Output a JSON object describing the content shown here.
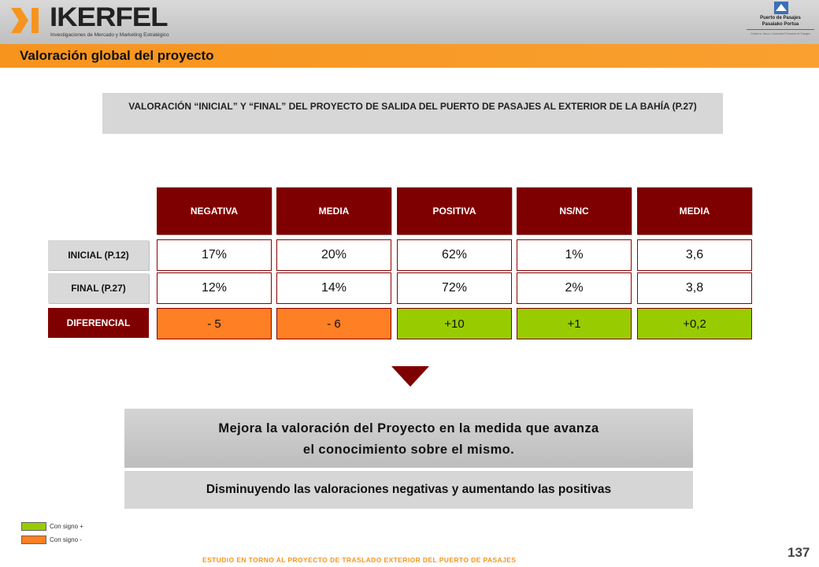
{
  "header": {
    "logo_text": "IKERFEL",
    "logo_tagline": "Investigaciones de Mercado y Marketing Estratégico",
    "port_name_1": "Puerto de Pasajes",
    "port_name_2": "Pasaiako Portua",
    "port_fine_print": "Gobierno Vasco / Autoridad Portuaria de Pasajes"
  },
  "section_title": "Valoración global del proyecto",
  "subtitle": "VALORACIÓN “INICIAL” Y “FINAL” DEL PROYECTO DE SALIDA DEL PUERTO DE PASAJES AL EXTERIOR DE LA BAHÍA (P.27)",
  "table": {
    "columns": [
      "NEGATIVA",
      "MEDIA",
      "POSITIVA",
      "NS/NC",
      "MEDIA"
    ],
    "rows": [
      {
        "label": "INICIAL (P.12)",
        "values": [
          "17%",
          "20%",
          "62%",
          "1%",
          "3,6"
        ]
      },
      {
        "label": "FINAL (P.27)",
        "values": [
          "12%",
          "14%",
          "72%",
          "2%",
          "3,8"
        ]
      },
      {
        "label": "DIFERENCIAL",
        "values": [
          "- 5",
          "- 6",
          "+10",
          "+1",
          "+0,2"
        ]
      }
    ]
  },
  "conclusion": {
    "line1": "Mejora la valoración del Proyecto en la medida que avanza",
    "line2": "el conocimiento sobre el mismo.",
    "detail": "Disminuyendo las valoraciones negativas y aumentando las positivas"
  },
  "legend": {
    "positive_label": "Con signo +",
    "negative_label": "Con signo -",
    "positive_color": "#99cc00",
    "negative_color": "#ff7f24"
  },
  "colors": {
    "accent": "#f7941d",
    "header_red": "#7f0000"
  },
  "footer": "ESTUDIO EN TORNO AL PROYECTO DE TRASLADO EXTERIOR DEL PUERTO DE PASAJES",
  "page_number": "137"
}
